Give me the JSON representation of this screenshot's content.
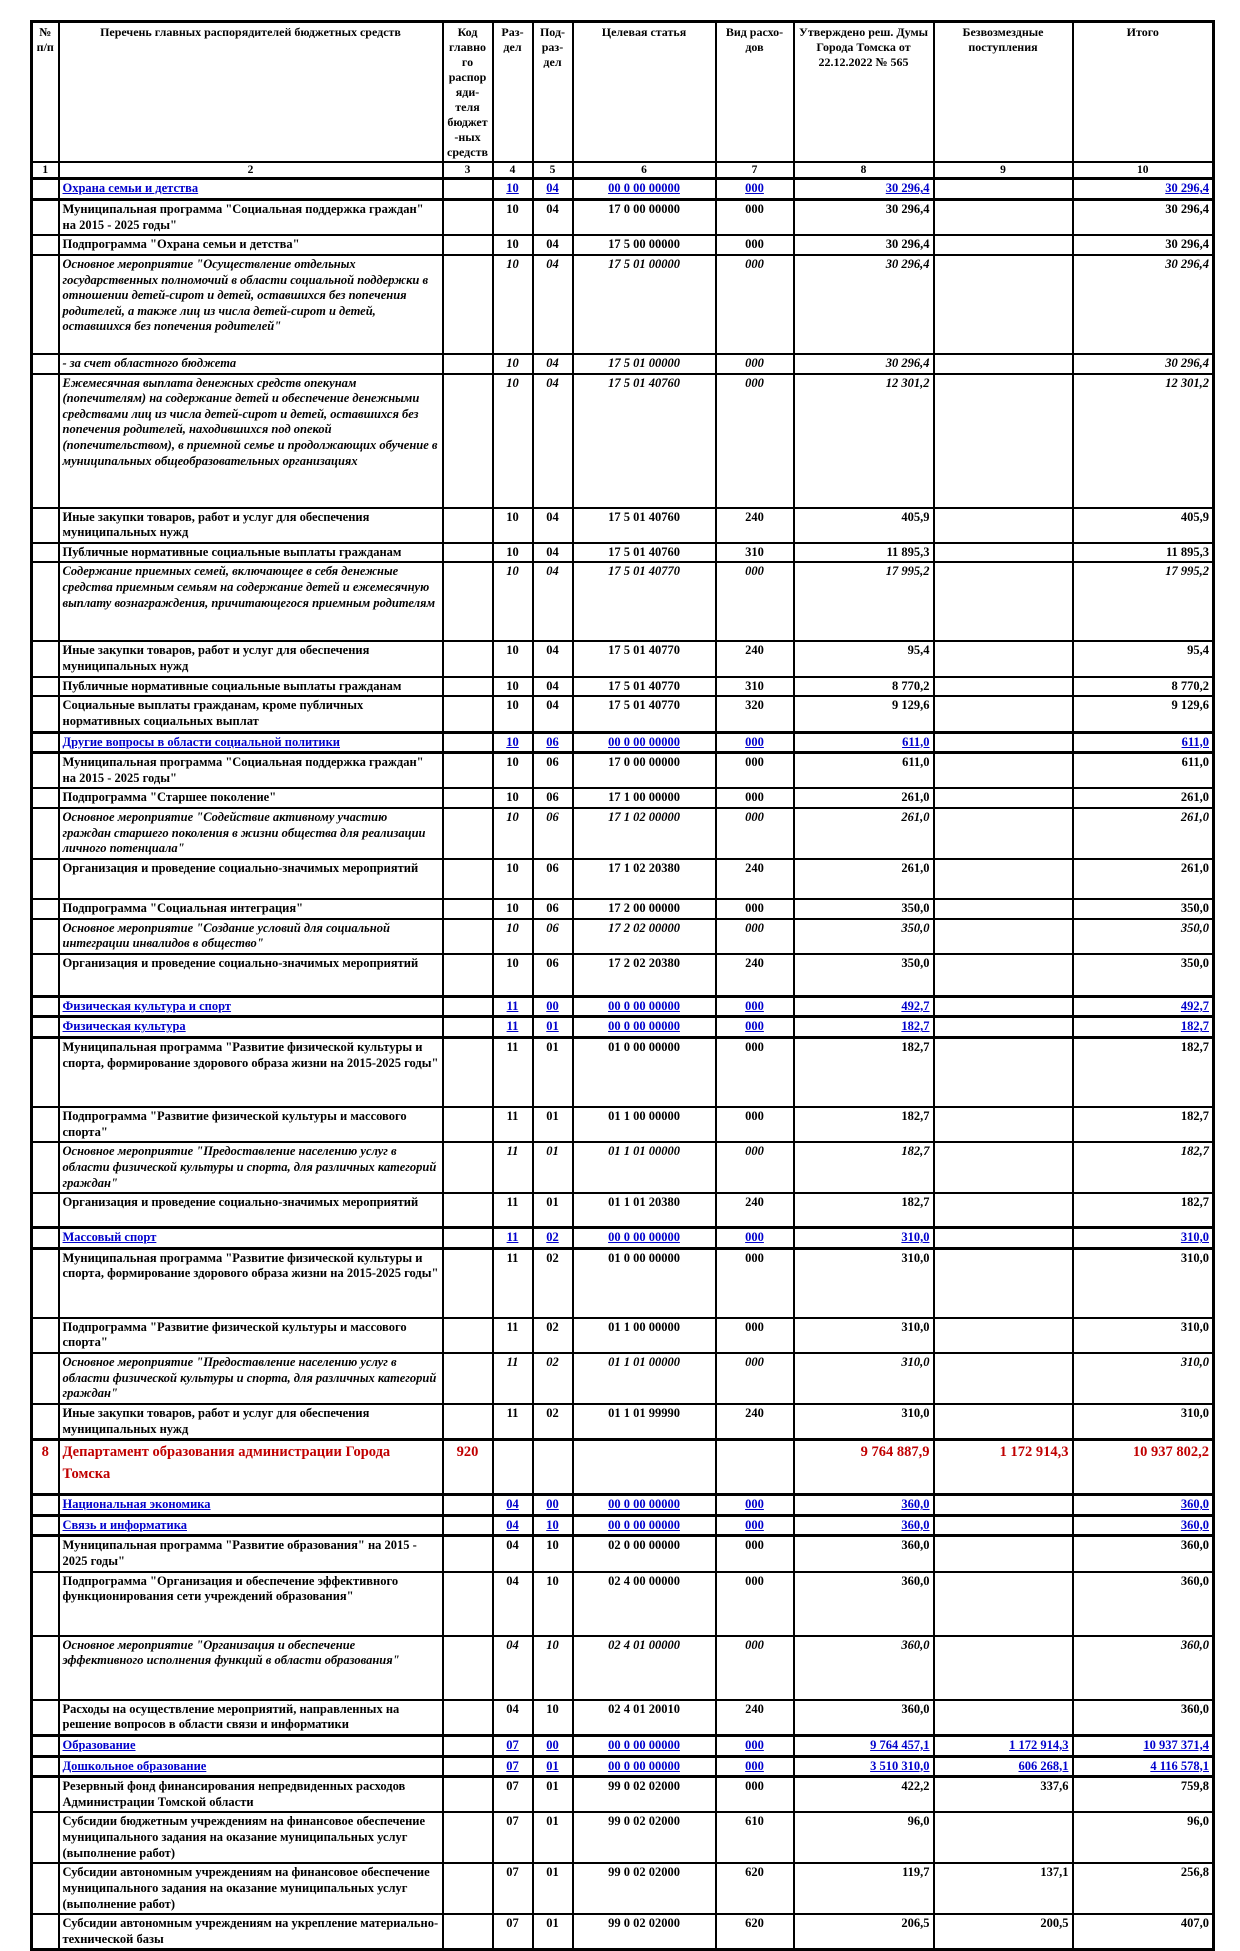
{
  "colors": {
    "section_text": "#0000cc",
    "department_text": "#c00000",
    "grid": "#000000",
    "background": "#ffffff"
  },
  "table": {
    "headers": [
      "№ п/п",
      "Перечень главных распорядителей бюджетных средств",
      "Код главного распоряди-теля бюджет-ных средств",
      "Раз-дел",
      "Под-раз-дел",
      "Целевая статья",
      "Вид расхо-дов",
      "Утверждено реш. Думы Города Томска от 22.12.2022 № 565",
      "Безвозмездные поступления",
      "Итого"
    ],
    "col_numbers": [
      "1",
      "2",
      "3",
      "4",
      "5",
      "6",
      "7",
      "8",
      "9",
      "10"
    ],
    "rows": [
      {
        "num": "",
        "name": "Охрана семьи и детства",
        "gp_code": "",
        "razdel": "10",
        "podrazdel": "04",
        "target_article": "00 0 00 00000",
        "expense_type": "000",
        "approved": "30 296,4",
        "gratuitous": "",
        "total": "30 296,4",
        "style": "section"
      },
      {
        "num": "",
        "name": "Муниципальная программа \"Социальная поддержка граждан\" на 2015 - 2025 годы\"",
        "gp_code": "",
        "razdel": "10",
        "podrazdel": "04",
        "target_article": "17 0 00 00000",
        "expense_type": "000",
        "approved": "30 296,4",
        "gratuitous": "",
        "total": "30 296,4",
        "style": "normal"
      },
      {
        "num": "",
        "name": "Подпрограмма \"Охрана семьи и детства\"",
        "gp_code": "",
        "razdel": "10",
        "podrazdel": "04",
        "target_article": "17 5 00 00000",
        "expense_type": "000",
        "approved": "30 296,4",
        "gratuitous": "",
        "total": "30 296,4",
        "style": "normal"
      },
      {
        "num": "",
        "name": "Основное мероприятие \"Осуществление отдельных государственных полномочий в области социальной поддержки в отношении детей-сирот и детей, оставшихся без попечения родителей, а также лиц из числа детей-сирот и детей, оставшихся без попечения родителей\"",
        "gp_code": "",
        "razdel": "10",
        "podrazdel": "04",
        "target_article": "17 5 01 00000",
        "expense_type": "000",
        "approved": "30 296,4",
        "gratuitous": "",
        "total": "30 296,4",
        "style": "italic h95"
      },
      {
        "num": "",
        "name": "- за счет областного бюджета",
        "gp_code": "",
        "razdel": "10",
        "podrazdel": "04",
        "target_article": "17 5 01 00000",
        "expense_type": "000",
        "approved": "30 296,4",
        "gratuitous": "",
        "total": "30 296,4",
        "style": "italic"
      },
      {
        "num": "",
        "name": "Ежемесячная выплата денежных средств опекунам (попечителям) на содержание детей и обеспечение денежными средствами лиц из числа детей-сирот и детей, оставшихся без попечения родителей, находившихся под опекой (попечительством), в приемной семье и продолжающих обучение в муниципальных общеобразовательных организациях",
        "gp_code": "",
        "razdel": "10",
        "podrazdel": "04",
        "target_article": "17 5 01 40760",
        "expense_type": "000",
        "approved": "12 301,2",
        "gratuitous": "",
        "total": "12 301,2",
        "style": "italic h130"
      },
      {
        "num": "",
        "name": "Иные закупки товаров, работ и услуг для обеспечения муниципальных нужд",
        "gp_code": "",
        "razdel": "10",
        "podrazdel": "04",
        "target_article": "17 5 01 40760",
        "expense_type": "240",
        "approved": "405,9",
        "gratuitous": "",
        "total": "405,9",
        "style": "normal"
      },
      {
        "num": "",
        "name": "Публичные нормативные социальные выплаты гражданам",
        "gp_code": "",
        "razdel": "10",
        "podrazdel": "04",
        "target_article": "17 5 01 40760",
        "expense_type": "310",
        "approved": "11 895,3",
        "gratuitous": "",
        "total": "11 895,3",
        "style": "normal"
      },
      {
        "num": "",
        "name": "Содержание приемных семей, включающее в себя денежные средства приемным семьям на содержание детей и ежемесячную выплату вознаграждения, причитающегося приемным родителям",
        "gp_code": "",
        "razdel": "10",
        "podrazdel": "04",
        "target_article": "17 5 01 40770",
        "expense_type": "000",
        "approved": "17 995,2",
        "gratuitous": "",
        "total": "17 995,2",
        "style": "italic h75"
      },
      {
        "num": "",
        "name": "Иные закупки товаров, работ и услуг для обеспечения муниципальных нужд",
        "gp_code": "",
        "razdel": "10",
        "podrazdel": "04",
        "target_article": "17 5 01 40770",
        "expense_type": "240",
        "approved": "95,4",
        "gratuitous": "",
        "total": "95,4",
        "style": "normal"
      },
      {
        "num": "",
        "name": "Публичные нормативные социальные выплаты гражданам",
        "gp_code": "",
        "razdel": "10",
        "podrazdel": "04",
        "target_article": "17 5 01 40770",
        "expense_type": "310",
        "approved": "8 770,2",
        "gratuitous": "",
        "total": "8 770,2",
        "style": "normal"
      },
      {
        "num": "",
        "name": "Социальные выплаты гражданам, кроме публичных нормативных социальных выплат",
        "gp_code": "",
        "razdel": "10",
        "podrazdel": "04",
        "target_article": "17 5 01 40770",
        "expense_type": "320",
        "approved": "9 129,6",
        "gratuitous": "",
        "total": "9 129,6",
        "style": "normal"
      },
      {
        "num": "",
        "name": "Другие вопросы в области социальной политики",
        "gp_code": "",
        "razdel": "10",
        "podrazdel": "06",
        "target_article": "00 0 00 00000",
        "expense_type": "000",
        "approved": "611,0",
        "gratuitous": "",
        "total": "611,0",
        "style": "section"
      },
      {
        "num": "",
        "name": "Муниципальная программа \"Социальная поддержка граждан\" на 2015 - 2025 годы\"",
        "gp_code": "",
        "razdel": "10",
        "podrazdel": "06",
        "target_article": "17 0 00 00000",
        "expense_type": "000",
        "approved": "611,0",
        "gratuitous": "",
        "total": "611,0",
        "style": "normal"
      },
      {
        "num": "",
        "name": "Подпрограмма \"Старшее поколение\"",
        "gp_code": "",
        "razdel": "10",
        "podrazdel": "06",
        "target_article": "17 1 00 00000",
        "expense_type": "000",
        "approved": "261,0",
        "gratuitous": "",
        "total": "261,0",
        "style": "normal"
      },
      {
        "num": "",
        "name": "Основное мероприятие \"Содействие активному участию граждан старшего поколения в жизни общества для реализации личного потенциала\"",
        "gp_code": "",
        "razdel": "10",
        "podrazdel": "06",
        "target_article": "17 1 02 00000",
        "expense_type": "000",
        "approved": "261,0",
        "gratuitous": "",
        "total": "261,0",
        "style": "italic"
      },
      {
        "num": "",
        "name": "Организация и проведение социально-значимых мероприятий",
        "gp_code": "",
        "razdel": "10",
        "podrazdel": "06",
        "target_article": "17 1 02 20380",
        "expense_type": "240",
        "approved": "261,0",
        "gratuitous": "",
        "total": "261,0",
        "style": "normal h36"
      },
      {
        "num": "",
        "name": "Подпрограмма \"Социальная интеграция\"",
        "gp_code": "",
        "razdel": "10",
        "podrazdel": "06",
        "target_article": "17 2 00 00000",
        "expense_type": "000",
        "approved": "350,0",
        "gratuitous": "",
        "total": "350,0",
        "style": "normal"
      },
      {
        "num": "",
        "name": "Основное мероприятие \"Создание условий для социальной интеграции инвалидов в общество\"",
        "gp_code": "",
        "razdel": "10",
        "podrazdel": "06",
        "target_article": "17 2 02 00000",
        "expense_type": "000",
        "approved": "350,0",
        "gratuitous": "",
        "total": "350,0",
        "style": "italic"
      },
      {
        "num": "",
        "name": "Организация и проведение социально-значимых мероприятий",
        "gp_code": "",
        "razdel": "10",
        "podrazdel": "06",
        "target_article": "17 2 02 20380",
        "expense_type": "240",
        "approved": "350,0",
        "gratuitous": "",
        "total": "350,0",
        "style": "normal h38"
      },
      {
        "num": "",
        "name": "Физическая культура и спорт",
        "gp_code": "",
        "razdel": "11",
        "podrazdel": "00",
        "target_article": "00 0 00 00000",
        "expense_type": "000",
        "approved": "492,7",
        "gratuitous": "",
        "total": "492,7",
        "style": "section"
      },
      {
        "num": "",
        "name": "Физическая культура",
        "gp_code": "",
        "razdel": "11",
        "podrazdel": "01",
        "target_article": "00 0 00 00000",
        "expense_type": "000",
        "approved": "182,7",
        "gratuitous": "",
        "total": "182,7",
        "style": "section"
      },
      {
        "num": "",
        "name": "Муниципальная программа \"Развитие физической культуры и спорта, формирование здорового образа жизни на 2015-2025 годы\"",
        "gp_code": "",
        "razdel": "11",
        "podrazdel": "01",
        "target_article": "01 0 00 00000",
        "expense_type": "000",
        "approved": "182,7",
        "gratuitous": "",
        "total": "182,7",
        "style": "normal h65"
      },
      {
        "num": "",
        "name": "Подпрограмма \"Развитие физической культуры и массового спорта\"",
        "gp_code": "",
        "razdel": "11",
        "podrazdel": "01",
        "target_article": "01 1 00 00000",
        "expense_type": "000",
        "approved": "182,7",
        "gratuitous": "",
        "total": "182,7",
        "style": "normal"
      },
      {
        "num": "",
        "name": "Основное мероприятие \"Предоставление населению услуг в области физической культуры и спорта, для различных категорий граждан\"",
        "gp_code": "",
        "razdel": "11",
        "podrazdel": "01",
        "target_article": "01 1 01 00000",
        "expense_type": "000",
        "approved": "182,7",
        "gratuitous": "",
        "total": "182,7",
        "style": "italic"
      },
      {
        "num": "",
        "name": "Организация и проведение социально-значимых мероприятий",
        "gp_code": "",
        "razdel": "11",
        "podrazdel": "01",
        "target_article": "01 1 01 20380",
        "expense_type": "240",
        "approved": "182,7",
        "gratuitous": "",
        "total": "182,7",
        "style": "normal h30"
      },
      {
        "num": "",
        "name": "Массовый спорт",
        "gp_code": "",
        "razdel": "11",
        "podrazdel": "02",
        "target_article": "00 0 00 00000",
        "expense_type": "000",
        "approved": "310,0",
        "gratuitous": "",
        "total": "310,0",
        "style": "section"
      },
      {
        "num": "",
        "name": "Муниципальная программа \"Развитие физической культуры и спорта, формирование здорового образа жизни на 2015-2025 годы\"",
        "gp_code": "",
        "razdel": "11",
        "podrazdel": "02",
        "target_article": "01 0 00 00000",
        "expense_type": "000",
        "approved": "310,0",
        "gratuitous": "",
        "total": "310,0",
        "style": "normal h65"
      },
      {
        "num": "",
        "name": "Подпрограмма \"Развитие физической культуры и массового спорта\"",
        "gp_code": "",
        "razdel": "11",
        "podrazdel": "02",
        "target_article": "01 1 00 00000",
        "expense_type": "000",
        "approved": "310,0",
        "gratuitous": "",
        "total": "310,0",
        "style": "normal"
      },
      {
        "num": "",
        "name": "Основное мероприятие \"Предоставление населению услуг в области физической культуры и спорта, для различных категорий граждан\"",
        "gp_code": "",
        "razdel": "11",
        "podrazdel": "02",
        "target_article": "01 1 01 00000",
        "expense_type": "000",
        "approved": "310,0",
        "gratuitous": "",
        "total": "310,0",
        "style": "italic"
      },
      {
        "num": "",
        "name": "Иные закупки товаров, работ и услуг для обеспечения муниципальных нужд",
        "gp_code": "",
        "razdel": "11",
        "podrazdel": "02",
        "target_article": "01 1 01 99990",
        "expense_type": "240",
        "approved": "310,0",
        "gratuitous": "",
        "total": "310,0",
        "style": "normal"
      },
      {
        "num": "8",
        "name": "Департамент образования администрации Города Томска",
        "gp_code": "920",
        "razdel": "",
        "podrazdel": "",
        "target_article": "",
        "expense_type": "",
        "approved": "9 764 887,9",
        "gratuitous": "1 172 914,3",
        "total": "10 937 802,2",
        "style": "department h50"
      },
      {
        "num": "",
        "name": "Национальная экономика",
        "gp_code": "",
        "razdel": "04",
        "podrazdel": "00",
        "target_article": "00 0 00 00000",
        "expense_type": "000",
        "approved": "360,0",
        "gratuitous": "",
        "total": "360,0",
        "style": "section"
      },
      {
        "num": "",
        "name": "Связь и информатика",
        "gp_code": "",
        "razdel": "04",
        "podrazdel": "10",
        "target_article": "00 0 00 00000",
        "expense_type": "000",
        "approved": "360,0",
        "gratuitous": "",
        "total": "360,0",
        "style": "section"
      },
      {
        "num": "",
        "name": "Муниципальная программа \"Развитие образования\" на 2015 - 2025 годы\"",
        "gp_code": "",
        "razdel": "04",
        "podrazdel": "10",
        "target_article": "02 0 00 00000",
        "expense_type": "000",
        "approved": "360,0",
        "gratuitous": "",
        "total": "360,0",
        "style": "normal"
      },
      {
        "num": "",
        "name": "Подпрограмма \"Организация и обеспечение эффективного функционирования сети учреждений образования\"",
        "gp_code": "",
        "razdel": "04",
        "podrazdel": "10",
        "target_article": "02 4 00 00000",
        "expense_type": "000",
        "approved": "360,0",
        "gratuitous": "",
        "total": "360,0",
        "style": "normal h60"
      },
      {
        "num": "",
        "name": "Основное мероприятие \"Организация и обеспечение эффективного исполнения функций в области образования\"",
        "gp_code": "",
        "razdel": "04",
        "podrazdel": "10",
        "target_article": "02 4 01 00000",
        "expense_type": "000",
        "approved": "360,0",
        "gratuitous": "",
        "total": "360,0",
        "style": "italic h60"
      },
      {
        "num": "",
        "name": "Расходы на осуществление мероприятий, направленных на решение вопросов в области связи и информатики",
        "gp_code": "",
        "razdel": "04",
        "podrazdel": "10",
        "target_article": "02 4 01 20010",
        "expense_type": "240",
        "approved": "360,0",
        "gratuitous": "",
        "total": "360,0",
        "style": "normal"
      },
      {
        "num": "",
        "name": "Образование",
        "gp_code": "",
        "razdel": "07",
        "podrazdel": "00",
        "target_article": "00 0 00 00000",
        "expense_type": "000",
        "approved": "9 764 457,1",
        "gratuitous": "1 172 914,3",
        "total": "10 937 371,4",
        "style": "section"
      },
      {
        "num": "",
        "name": "Дошкольное образование",
        "gp_code": "",
        "razdel": "07",
        "podrazdel": "01",
        "target_article": "00 0 00 00000",
        "expense_type": "000",
        "approved": "3 510 310,0",
        "gratuitous": "606 268,1",
        "total": "4 116 578,1",
        "style": "section"
      },
      {
        "num": "",
        "name": "Резервный фонд финансирования непредвиденных расходов Администрации Томской области",
        "gp_code": "",
        "razdel": "07",
        "podrazdel": "01",
        "target_article": "99 0 02 02000",
        "expense_type": "000",
        "approved": "422,2",
        "gratuitous": "337,6",
        "total": "759,8",
        "style": "normal"
      },
      {
        "num": "",
        "name": "Субсидии бюджетным учреждениям на финансовое обеспечение муниципального задания на оказание муниципальных услуг (выполнение работ)",
        "gp_code": "",
        "razdel": "07",
        "podrazdel": "01",
        "target_article": "99 0 02 02000",
        "expense_type": "610",
        "approved": "96,0",
        "gratuitous": "",
        "total": "96,0",
        "style": "normal"
      },
      {
        "num": "",
        "name": "Субсидии автономным учреждениям на финансовое обеспечение муниципального задания на оказание муниципальных услуг (выполнение работ)",
        "gp_code": "",
        "razdel": "07",
        "podrazdel": "01",
        "target_article": "99 0 02 02000",
        "expense_type": "620",
        "approved": "119,7",
        "gratuitous": "137,1",
        "total": "256,8",
        "style": "normal"
      },
      {
        "num": "",
        "name": "Субсидии автономным учреждениям на укрепление материально-технической базы",
        "gp_code": "",
        "razdel": "07",
        "podrazdel": "01",
        "target_article": "99 0 02 02000",
        "expense_type": "620",
        "approved": "206,5",
        "gratuitous": "200,5",
        "total": "407,0",
        "style": "normal"
      }
    ]
  }
}
